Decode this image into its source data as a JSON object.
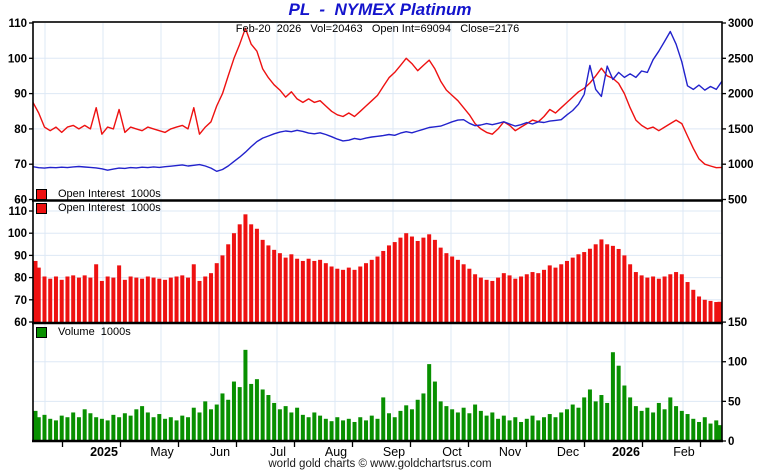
{
  "header": {
    "title": "PL  -  NYMEX Platinum",
    "subtitle": "Feb-20  2026   Vol=20463   Open Int=69094   Close=2176"
  },
  "footer": {
    "credit": "world gold charts © www.goldchartsrus.com"
  },
  "colors": {
    "title": "#1414cc",
    "price_line": "#2222cc",
    "open_interest": "#ee1111",
    "volume": "#089000",
    "grid": "#dde8f5",
    "axis": "#000000",
    "background": "#ffffff"
  },
  "chart_data": {
    "type": "multi-panel-timeseries",
    "x_axis": {
      "labels": [
        "2025",
        "May",
        "Jun",
        "Jul",
        "Aug",
        "Sep",
        "Oct",
        "Nov",
        "Dec",
        "2026",
        "Feb"
      ],
      "bold_labels": [
        "2025",
        "2026"
      ]
    },
    "panels": [
      {
        "type": "line",
        "name": "price-and-open-interest",
        "legend": "Open Interest  1000s",
        "left_axis": {
          "ticks": [
            110,
            100,
            90,
            80,
            70,
            60
          ],
          "range": [
            60,
            110
          ]
        },
        "right_axis": {
          "ticks": [
            3000,
            2500,
            2000,
            1500,
            1000,
            500
          ],
          "range": [
            500,
            3000
          ]
        },
        "series": [
          {
            "name": "Open Interest 1000s",
            "ref": "open_interest_1000s",
            "axis": "left",
            "color": "#ee1111"
          },
          {
            "name": "Platinum Price",
            "ref": "price",
            "axis": "right",
            "color": "#2222cc"
          }
        ]
      },
      {
        "type": "bar",
        "name": "open-interest-bars",
        "legend": "Open Interest  1000s",
        "left_axis": {
          "ticks": [
            110,
            100,
            90,
            80,
            70,
            60
          ],
          "range": [
            60,
            110
          ]
        },
        "series": [
          {
            "name": "Open Interest 1000s",
            "ref": "open_interest_1000s",
            "color": "#ee1111"
          }
        ]
      },
      {
        "type": "bar",
        "name": "volume-bars",
        "legend": "Volume  1000s",
        "right_axis": {
          "ticks": [
            150,
            100,
            50,
            0
          ],
          "range": [
            0,
            150
          ]
        },
        "series": [
          {
            "name": "Volume 1000s",
            "ref": "volume_1000s",
            "color": "#089000"
          }
        ]
      }
    ],
    "series_values": {
      "open_interest_1000s": [
        87.5,
        84.5,
        80.5,
        79.5,
        80.5,
        79,
        80.5,
        81,
        80,
        81,
        80,
        86,
        78.5,
        80.5,
        80,
        85.5,
        79,
        80.5,
        80,
        79.5,
        80.5,
        80,
        79.5,
        79,
        80,
        80.5,
        81,
        80,
        86,
        78.5,
        80.5,
        82,
        86.5,
        90,
        95,
        100,
        104,
        108.5,
        104,
        102,
        97,
        94.5,
        92.5,
        91,
        89,
        90.5,
        88.5,
        87.5,
        88.5,
        87.5,
        88,
        86.5,
        85,
        84,
        83.5,
        84.5,
        83.5,
        85,
        86.5,
        88,
        89.5,
        92,
        94.5,
        96,
        98,
        100,
        98.5,
        96.5,
        98,
        99.5,
        97,
        93.5,
        91,
        89.5,
        88,
        86,
        84,
        81.5,
        80,
        79,
        78.5,
        80,
        82,
        81,
        79.5,
        80.5,
        81.5,
        82.5,
        82,
        83.5,
        85.5,
        84.5,
        86,
        87.5,
        89,
        90.5,
        91.5,
        93,
        95,
        97.2,
        95,
        94.3,
        92.9,
        90,
        86,
        82.5,
        81,
        80,
        80.5,
        79.5,
        80.5,
        81.5,
        82.5,
        81.5,
        78,
        74.5,
        71.5,
        70,
        69.5,
        69,
        69.1
      ],
      "price": [
        965,
        950,
        945,
        955,
        950,
        958,
        952,
        962,
        968,
        960,
        955,
        948,
        935,
        915,
        930,
        945,
        940,
        952,
        948,
        958,
        952,
        962,
        955,
        965,
        972,
        980,
        990,
        975,
        985,
        995,
        975,
        945,
        900,
        925,
        975,
        1040,
        1100,
        1170,
        1250,
        1320,
        1370,
        1400,
        1430,
        1455,
        1470,
        1460,
        1480,
        1465,
        1440,
        1430,
        1445,
        1420,
        1390,
        1355,
        1330,
        1340,
        1365,
        1350,
        1370,
        1385,
        1395,
        1405,
        1420,
        1410,
        1440,
        1460,
        1445,
        1470,
        1495,
        1520,
        1530,
        1540,
        1570,
        1600,
        1625,
        1630,
        1580,
        1545,
        1555,
        1575,
        1560,
        1580,
        1600,
        1570,
        1540,
        1560,
        1590,
        1570,
        1600,
        1590,
        1610,
        1620,
        1630,
        1700,
        1760,
        1850,
        1990,
        2400,
        2060,
        1960,
        2390,
        2200,
        2300,
        2230,
        2280,
        2230,
        2320,
        2300,
        2480,
        2600,
        2740,
        2880,
        2700,
        2450,
        2110,
        2060,
        2120,
        2050,
        2100,
        2060,
        2176
      ],
      "volume_1000s": [
        38,
        30,
        33,
        28,
        26,
        32,
        30,
        36,
        30,
        40,
        35,
        30,
        28,
        26,
        33,
        30,
        35,
        32,
        40,
        44,
        36,
        30,
        34,
        28,
        30,
        26,
        32,
        30,
        42,
        36,
        50,
        40,
        46,
        60,
        52,
        75,
        68,
        115,
        72,
        78,
        65,
        58,
        48,
        40,
        44,
        36,
        42,
        33,
        30,
        36,
        32,
        28,
        25,
        30,
        26,
        28,
        24,
        30,
        26,
        32,
        28,
        55,
        35,
        30,
        38,
        45,
        40,
        52,
        60,
        97,
        75,
        50,
        44,
        40,
        36,
        42,
        35,
        46,
        38,
        32,
        36,
        28,
        32,
        26,
        30,
        24,
        28,
        32,
        26,
        30,
        34,
        30,
        36,
        40,
        46,
        42,
        55,
        65,
        50,
        58,
        48,
        112,
        95,
        70,
        55,
        44,
        38,
        42,
        36,
        48,
        40,
        55,
        44,
        38,
        34,
        28,
        24,
        30,
        22,
        26,
        20
      ]
    }
  }
}
